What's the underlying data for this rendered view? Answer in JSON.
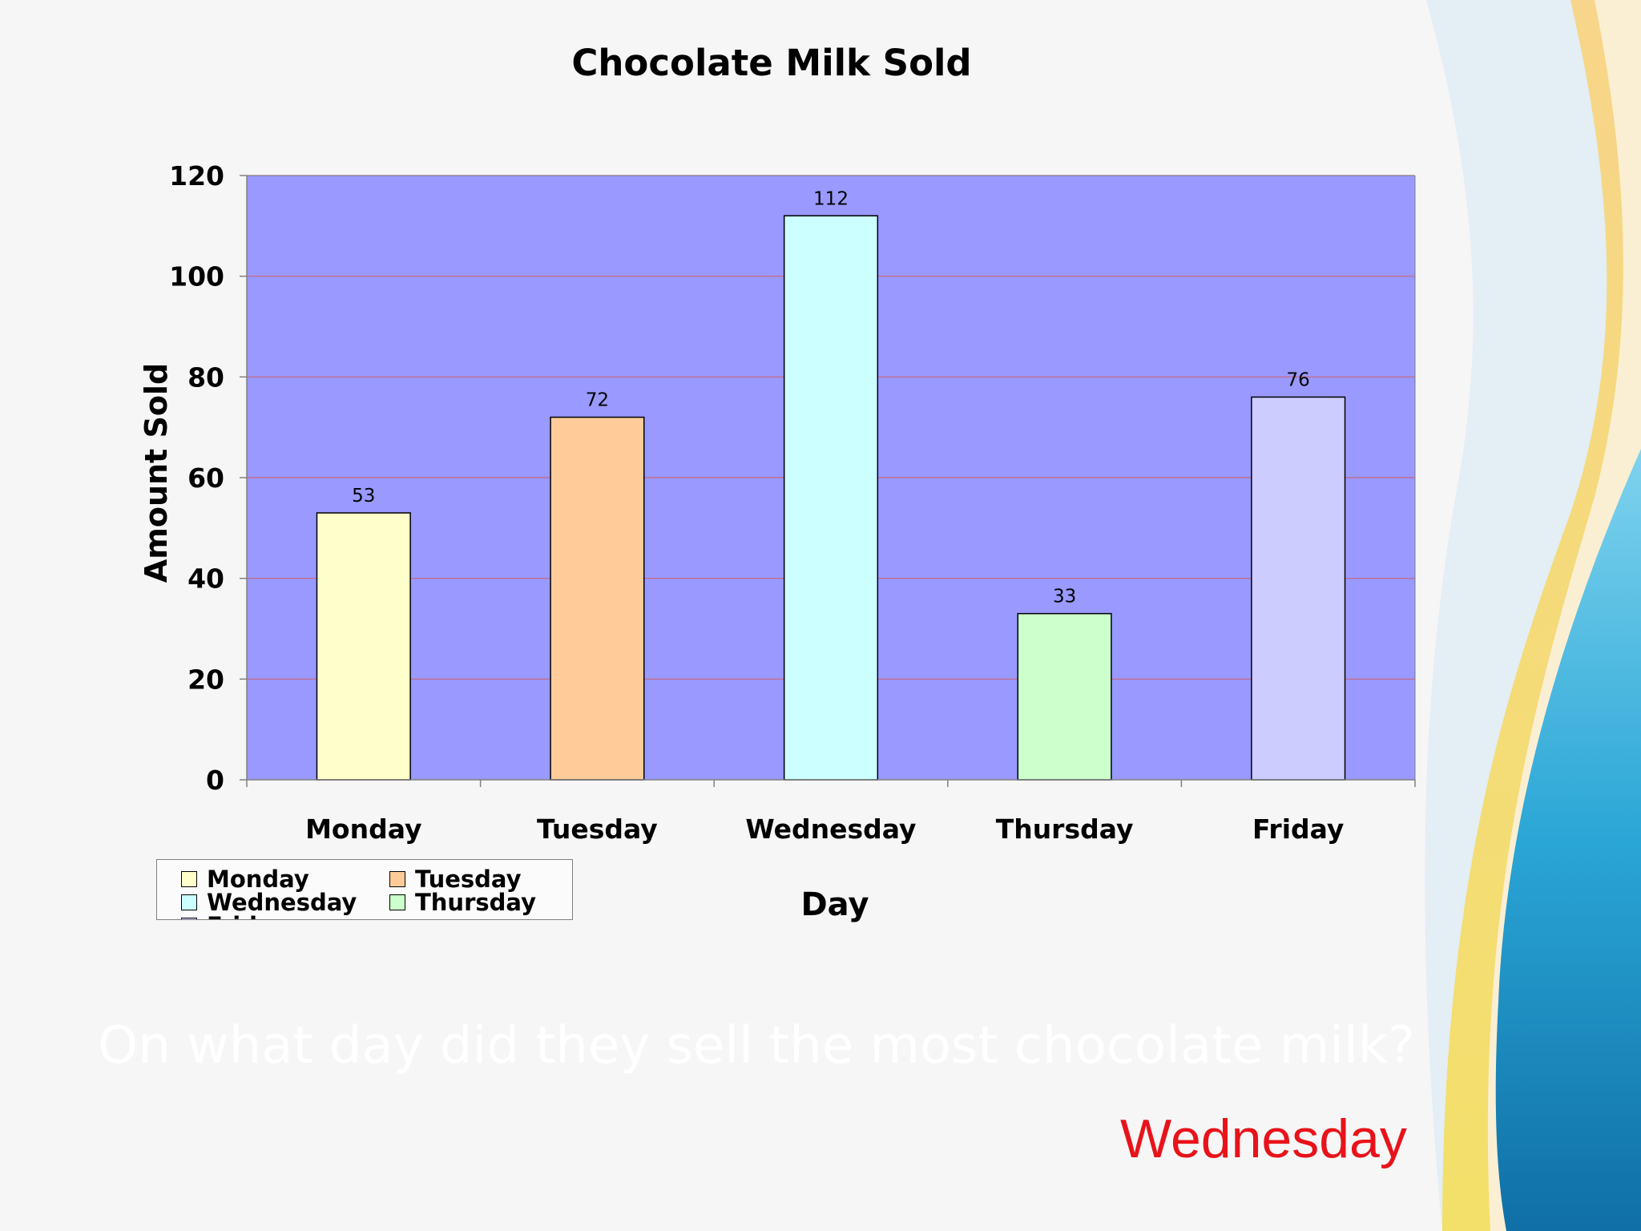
{
  "slide": {
    "question": "On what day did they sell the most chocolate milk?",
    "answer": "Wednesday",
    "answer_color": "#e8131a"
  },
  "chart_data": {
    "type": "bar",
    "title": "Chocolate Milk Sold",
    "xlabel": "Day",
    "ylabel": "Amount Sold",
    "categories": [
      "Monday",
      "Tuesday",
      "Wednesday",
      "Thursday",
      "Friday"
    ],
    "values": [
      53,
      72,
      112,
      33,
      76
    ],
    "bar_colors": [
      "#ffffcc",
      "#ffcc99",
      "#ccffff",
      "#ccffcc",
      "#ccccff"
    ],
    "ylim": [
      0,
      120
    ],
    "yticks": [
      0,
      20,
      40,
      60,
      80,
      100,
      120
    ],
    "plot_background": "#9999ff",
    "gridline_color": "#cc6677",
    "grid": true,
    "data_labels": true,
    "legend": {
      "placement": "bottom-left",
      "entries": [
        "Monday",
        "Tuesday",
        "Wednesday",
        "Thursday",
        "Friday"
      ]
    }
  }
}
